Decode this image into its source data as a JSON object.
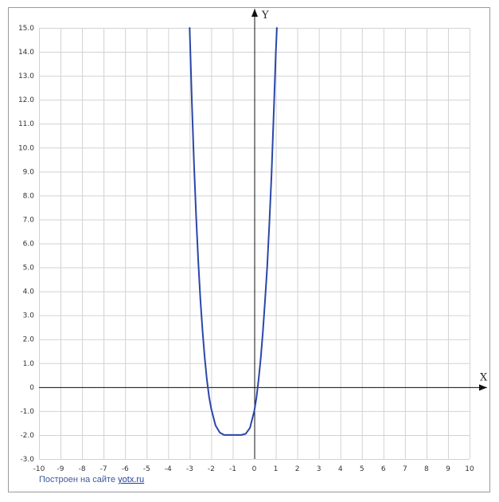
{
  "chart_data": {
    "type": "line",
    "title": "",
    "xlabel": "X",
    "ylabel": "Y",
    "xlim": [
      -10,
      10
    ],
    "ylim": [
      -3,
      15
    ],
    "grid": true,
    "x_ticks": [
      "-10",
      "-9",
      "-8",
      "-7",
      "-6",
      "-5",
      "-4",
      "-3",
      "-2",
      "-1",
      "0",
      "1",
      "2",
      "3",
      "4",
      "5",
      "6",
      "7",
      "8",
      "9",
      "10"
    ],
    "y_ticks": [
      "-3.0",
      "-2.0",
      "-1.0",
      "0",
      "1.0",
      "2.0",
      "3.0",
      "4.0",
      "5.0",
      "6.0",
      "7.0",
      "8.0",
      "9.0",
      "10.0",
      "11.0",
      "12.0",
      "13.0",
      "14.0",
      "15.0"
    ],
    "series": [
      {
        "color": "#2a47a8",
        "x": [
          -3.0,
          -2.9,
          -2.8,
          -2.7,
          -2.6,
          -2.5,
          -2.4,
          -2.3,
          -2.2,
          -2.1,
          -2.0,
          -1.8,
          -1.6,
          -1.4,
          -1.2,
          -1.0,
          -0.8,
          -0.6,
          -0.4,
          -0.2,
          0.0,
          0.1,
          0.2,
          0.3,
          0.4,
          0.5,
          0.6,
          0.7,
          0.8,
          0.9,
          1.0,
          1.05
        ],
        "y": [
          15.0,
          11.9,
          9.3,
          7.1,
          5.2,
          3.6,
          2.3,
          1.2,
          0.3,
          -0.4,
          -0.9,
          -1.6,
          -1.9,
          -2.0,
          -2.0,
          -2.0,
          -2.0,
          -2.0,
          -1.95,
          -1.7,
          -1.0,
          -0.45,
          0.3,
          1.2,
          2.3,
          3.6,
          5.0,
          6.8,
          8.8,
          11.3,
          14.0,
          15.0
        ]
      }
    ]
  },
  "footer": {
    "credit_text": "Построен на сайте ",
    "credit_link": "yotx.ru"
  }
}
